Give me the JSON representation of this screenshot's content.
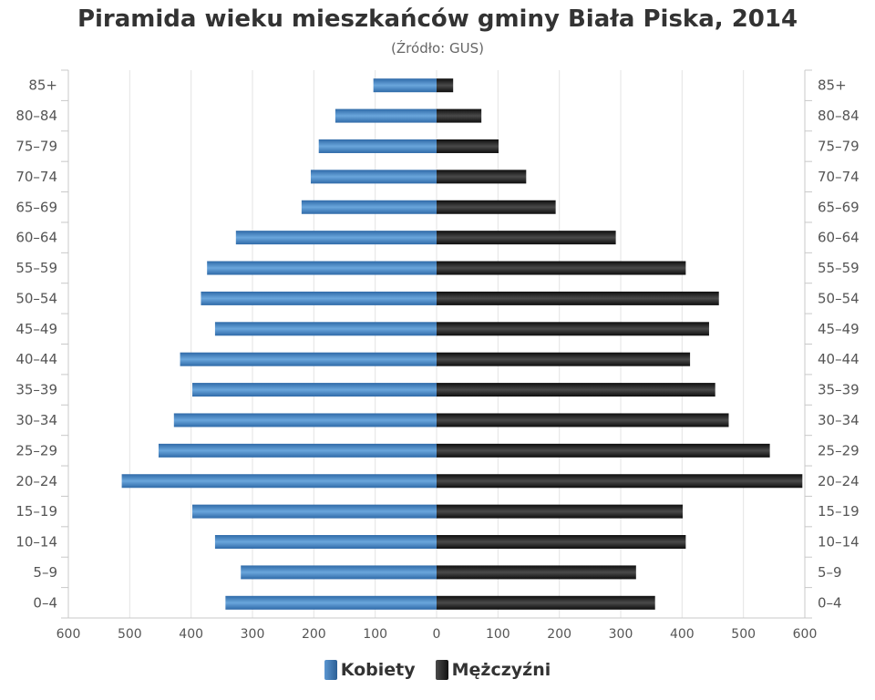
{
  "chart_data": {
    "type": "bar",
    "title": "Piramida wieku mieszkańców gminy Biała Piska, 2014",
    "subtitle": "(Źródło: GUS)",
    "categories": [
      "85+",
      "80–84",
      "75–79",
      "70–74",
      "65–69",
      "60–64",
      "55–59",
      "50–54",
      "45–49",
      "40–44",
      "35–39",
      "30–34",
      "25–29",
      "20–24",
      "15–19",
      "10–14",
      "5–9",
      "0–4"
    ],
    "series": [
      {
        "name": "Kobiety",
        "color": "#3b78b8",
        "values": [
          103,
          165,
          192,
          205,
          220,
          327,
          374,
          384,
          361,
          418,
          398,
          428,
          453,
          513,
          398,
          361,
          319,
          344
        ]
      },
      {
        "name": "Mężczyźni",
        "color": "#1a1a1a",
        "values": [
          27,
          73,
          101,
          146,
          194,
          292,
          406,
          460,
          444,
          413,
          454,
          476,
          543,
          596,
          401,
          406,
          325,
          356
        ]
      }
    ],
    "xlim": [
      -600,
      600
    ],
    "xticks": [
      "600",
      "500",
      "400",
      "300",
      "200",
      "100",
      "0",
      "100",
      "200",
      "300",
      "400",
      "500",
      "600"
    ],
    "grid": true,
    "legend": "bottom-center"
  }
}
